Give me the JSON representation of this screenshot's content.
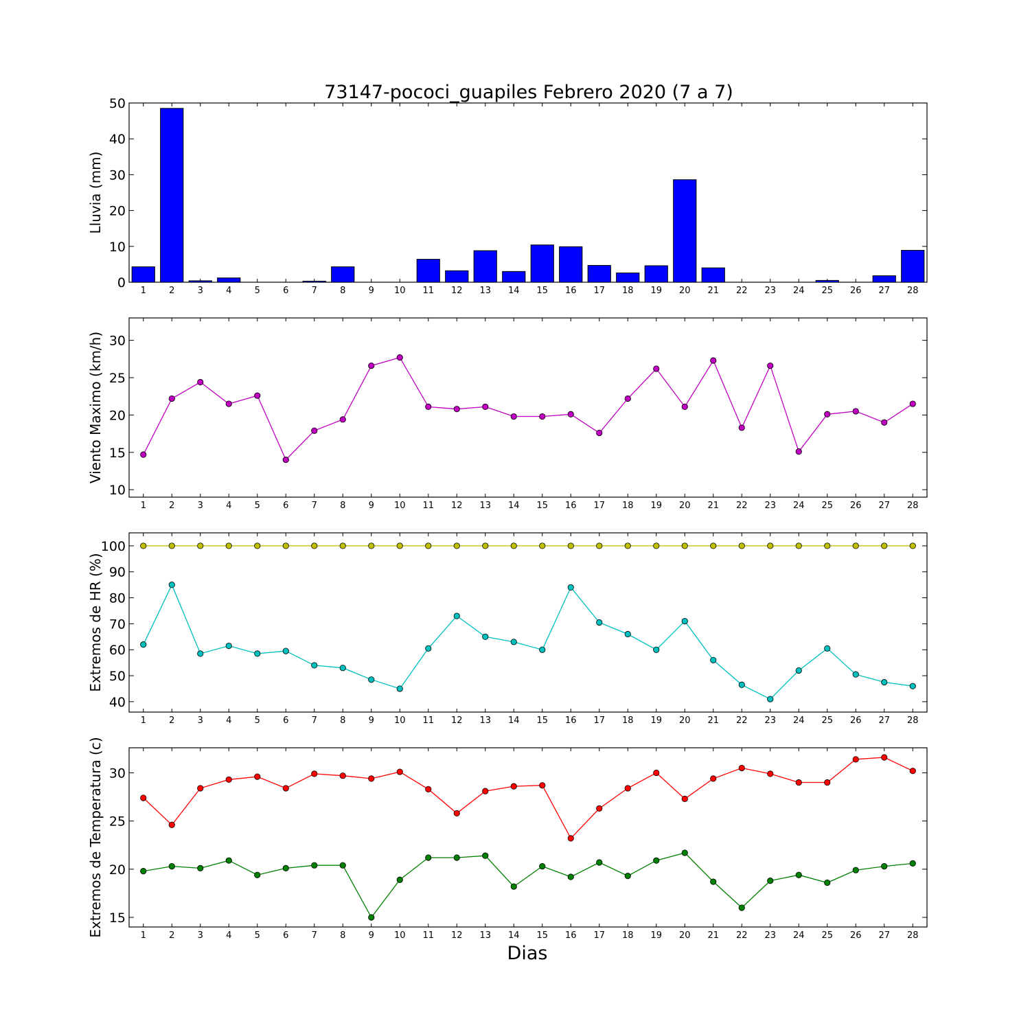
{
  "chart_data": [
    {
      "type": "bar",
      "title": "73147-pococi_guapiles Febrero 2020  (7 a 7)",
      "ylabel": "Lluvia (mm)",
      "xlabel": "",
      "ylim": [
        0,
        50
      ],
      "yticks": [
        0,
        10,
        20,
        30,
        40,
        50
      ],
      "categories": [
        1,
        2,
        3,
        4,
        5,
        6,
        7,
        8,
        9,
        10,
        11,
        12,
        13,
        14,
        15,
        16,
        17,
        18,
        19,
        20,
        21,
        22,
        23,
        24,
        25,
        26,
        27,
        28
      ],
      "series": [
        {
          "color": "#0000ff",
          "values": [
            4.3,
            48.5,
            0.4,
            1.2,
            0,
            0,
            0.3,
            4.3,
            0,
            0,
            6.4,
            3.2,
            8.8,
            3.0,
            10.4,
            9.9,
            4.7,
            2.6,
            4.6,
            28.6,
            4.0,
            0,
            0,
            0,
            0.5,
            0,
            1.8,
            8.9
          ]
        }
      ]
    },
    {
      "type": "line",
      "ylabel": "Viento Maximo (km/h)",
      "xlabel": "",
      "ylim": [
        9,
        33
      ],
      "yticks": [
        10,
        15,
        20,
        25,
        30
      ],
      "x": [
        1,
        2,
        3,
        4,
        5,
        6,
        7,
        8,
        9,
        10,
        11,
        12,
        13,
        14,
        15,
        16,
        17,
        18,
        19,
        20,
        21,
        22,
        23,
        24,
        25,
        26,
        27,
        28
      ],
      "series": [
        {
          "color": "#bf00bf",
          "values": [
            14.7,
            22.2,
            24.4,
            21.5,
            22.6,
            14.0,
            17.9,
            19.4,
            26.6,
            27.7,
            21.1,
            20.8,
            21.1,
            19.8,
            19.8,
            20.1,
            17.6,
            22.2,
            26.2,
            21.1,
            27.3,
            18.3,
            26.6,
            15.1,
            20.1,
            20.5,
            19.0,
            21.5
          ]
        }
      ]
    },
    {
      "type": "line",
      "ylabel": "Extremos de HR (%)",
      "xlabel": "",
      "ylim": [
        36,
        105
      ],
      "yticks": [
        40,
        50,
        60,
        70,
        80,
        90,
        100
      ],
      "x": [
        1,
        2,
        3,
        4,
        5,
        6,
        7,
        8,
        9,
        10,
        11,
        12,
        13,
        14,
        15,
        16,
        17,
        18,
        19,
        20,
        21,
        22,
        23,
        24,
        25,
        26,
        27,
        28
      ],
      "series": [
        {
          "color": "#bfbf00",
          "values": [
            100,
            100,
            100,
            100,
            100,
            100,
            100,
            100,
            100,
            100,
            100,
            100,
            100,
            100,
            100,
            100,
            100,
            100,
            100,
            100,
            100,
            100,
            100,
            100,
            100,
            100,
            100,
            100
          ]
        },
        {
          "color": "#00bfbf",
          "values": [
            62,
            85,
            58.5,
            61.5,
            58.5,
            59.5,
            54,
            53,
            48.5,
            45,
            60.5,
            73,
            65,
            63,
            60,
            84,
            70.5,
            66,
            60,
            71,
            56,
            46.5,
            41,
            52,
            60.5,
            50.5,
            47.5,
            46
          ]
        }
      ]
    },
    {
      "type": "line",
      "ylabel": "Extremos de Temperatura (c)",
      "xlabel": "Dias",
      "ylim": [
        14,
        32.6
      ],
      "yticks": [
        15,
        20,
        25,
        30
      ],
      "x": [
        1,
        2,
        3,
        4,
        5,
        6,
        7,
        8,
        9,
        10,
        11,
        12,
        13,
        14,
        15,
        16,
        17,
        18,
        19,
        20,
        21,
        22,
        23,
        24,
        25,
        26,
        27,
        28
      ],
      "series": [
        {
          "color": "#ff0000",
          "values": [
            27.4,
            24.6,
            28.4,
            29.3,
            29.6,
            28.4,
            29.9,
            29.7,
            29.4,
            30.1,
            28.3,
            25.8,
            28.1,
            28.6,
            28.7,
            23.2,
            26.3,
            28.4,
            30.0,
            27.3,
            29.4,
            30.5,
            29.9,
            29.0,
            29.0,
            31.4,
            31.6,
            30.2
          ]
        },
        {
          "color": "#008000",
          "values": [
            19.8,
            20.3,
            20.1,
            20.9,
            19.4,
            20.1,
            20.4,
            20.4,
            15.0,
            18.9,
            21.2,
            21.2,
            21.4,
            18.2,
            20.3,
            19.2,
            20.7,
            19.3,
            20.9,
            21.7,
            18.7,
            16.0,
            18.8,
            19.4,
            18.6,
            19.9,
            20.3,
            20.6
          ]
        }
      ]
    }
  ]
}
